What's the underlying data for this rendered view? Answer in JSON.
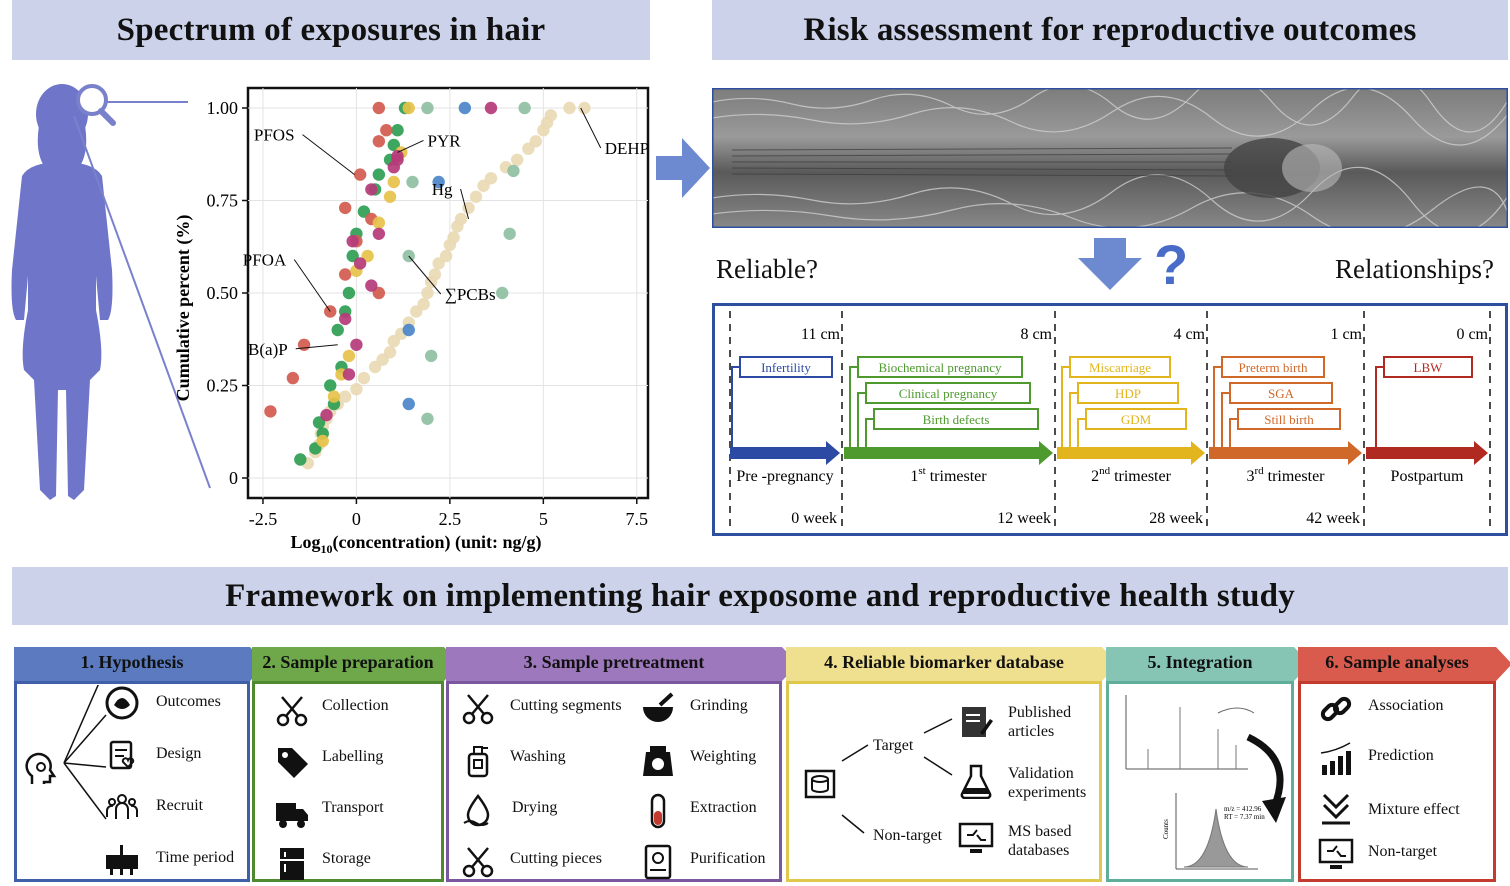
{
  "headers": {
    "left": "Spectrum of exposures in hair",
    "right": "Risk assessment for reproductive outcomes",
    "bottom": "Framework on implementing hair exposome and reproductive health study"
  },
  "chart_data": {
    "type": "scatter",
    "xlabel_main": "Log",
    "xlabel_sub": "10",
    "xlabel_rest": "(concentration) (unit: ng/g)",
    "ylabel": "Cumulative percent (%)",
    "xlim": [
      -2.9,
      7.8
    ],
    "ylim": [
      0,
      1.0
    ],
    "x_ticks": [
      {
        "v": -2.5,
        "label": "-2.5"
      },
      {
        "v": 0,
        "label": "0"
      },
      {
        "v": 2.5,
        "label": "2.5"
      },
      {
        "v": 5,
        "label": "5"
      },
      {
        "v": 7.5,
        "label": "7.5"
      }
    ],
    "y_ticks": [
      {
        "v": 0,
        "label": "0"
      },
      {
        "v": 0.25,
        "label": "0.25"
      },
      {
        "v": 0.5,
        "label": "0.50"
      },
      {
        "v": 0.75,
        "label": "0.75"
      },
      {
        "v": 1.0,
        "label": "1.00"
      }
    ],
    "grid": true,
    "series": [
      {
        "name": "DEHP",
        "color": "#e9d9b4",
        "points": [
          [
            -1.3,
            0.04
          ],
          [
            -1.1,
            0.07
          ],
          [
            -1.0,
            0.09
          ],
          [
            -0.95,
            0.12
          ],
          [
            -0.9,
            0.14
          ],
          [
            -0.8,
            0.16
          ],
          [
            -0.7,
            0.18
          ],
          [
            -0.5,
            0.2
          ],
          [
            -0.3,
            0.22
          ],
          [
            0.0,
            0.24
          ],
          [
            0.2,
            0.27
          ],
          [
            0.5,
            0.3
          ],
          [
            0.7,
            0.32
          ],
          [
            0.9,
            0.34
          ],
          [
            1.0,
            0.37
          ],
          [
            1.2,
            0.39
          ],
          [
            1.4,
            0.42
          ],
          [
            1.6,
            0.45
          ],
          [
            1.8,
            0.47
          ],
          [
            1.9,
            0.5
          ],
          [
            2.0,
            0.53
          ],
          [
            2.1,
            0.55
          ],
          [
            2.2,
            0.58
          ],
          [
            2.4,
            0.6
          ],
          [
            2.5,
            0.63
          ],
          [
            2.6,
            0.65
          ],
          [
            2.7,
            0.68
          ],
          [
            2.8,
            0.7
          ],
          [
            3.0,
            0.73
          ],
          [
            3.2,
            0.76
          ],
          [
            3.4,
            0.79
          ],
          [
            3.6,
            0.81
          ],
          [
            4.0,
            0.84
          ],
          [
            4.3,
            0.86
          ],
          [
            4.6,
            0.89
          ],
          [
            4.8,
            0.91
          ],
          [
            5.0,
            0.94
          ],
          [
            5.1,
            0.96
          ],
          [
            5.2,
            0.98
          ],
          [
            5.7,
            1.0
          ],
          [
            6.1,
            1.0
          ]
        ]
      },
      {
        "name": "Hg",
        "color": "#2e9e52",
        "points": [
          [
            -1.5,
            0.05
          ],
          [
            -1.1,
            0.08
          ],
          [
            -0.9,
            0.12
          ],
          [
            -1.0,
            0.15
          ],
          [
            -0.6,
            0.2
          ],
          [
            -0.7,
            0.25
          ],
          [
            -0.4,
            0.3
          ],
          [
            -0.5,
            0.4
          ],
          [
            -0.3,
            0.45
          ],
          [
            -0.2,
            0.5
          ],
          [
            -0.1,
            0.6
          ],
          [
            0.0,
            0.66
          ],
          [
            0.2,
            0.72
          ],
          [
            0.5,
            0.78
          ],
          [
            0.6,
            0.82
          ],
          [
            0.9,
            0.86
          ],
          [
            1.0,
            0.9
          ],
          [
            1.1,
            0.94
          ],
          [
            1.3,
            1.0
          ]
        ]
      },
      {
        "name": "PFOS",
        "color": "#d25a4e",
        "points": [
          [
            -2.3,
            0.18
          ],
          [
            -1.7,
            0.27
          ],
          [
            -1.4,
            0.36
          ],
          [
            -0.7,
            0.45
          ],
          [
            -0.3,
            0.55
          ],
          [
            0.0,
            0.64
          ],
          [
            0.1,
            0.82
          ],
          [
            0.4,
            0.7
          ],
          [
            0.6,
            0.5
          ],
          [
            0.8,
            0.94
          ],
          [
            0.6,
            0.91
          ],
          [
            -0.3,
            0.73
          ],
          [
            0.6,
            1.0
          ]
        ]
      },
      {
        "name": "PFOA",
        "color": "#e6c24a",
        "points": [
          [
            -0.9,
            0.1
          ],
          [
            -0.6,
            0.22
          ],
          [
            -0.4,
            0.28
          ],
          [
            -0.2,
            0.33
          ],
          [
            0.0,
            0.56
          ],
          [
            0.3,
            0.6
          ],
          [
            0.6,
            0.69
          ],
          [
            0.9,
            0.76
          ],
          [
            1.0,
            0.8
          ],
          [
            1.2,
            0.88
          ],
          [
            1.4,
            1.0
          ]
        ]
      },
      {
        "name": "PYR",
        "color": "#b53b79",
        "points": [
          [
            -0.8,
            0.17
          ],
          [
            -0.2,
            0.28
          ],
          [
            0.0,
            0.36
          ],
          [
            -0.3,
            0.43
          ],
          [
            0.4,
            0.52
          ],
          [
            0.1,
            0.58
          ],
          [
            -0.1,
            0.64
          ],
          [
            0.6,
            0.66
          ],
          [
            0.4,
            0.78
          ],
          [
            1.1,
            0.86
          ],
          [
            1.0,
            0.84
          ],
          [
            1.1,
            0.87
          ],
          [
            3.6,
            1.0
          ]
        ]
      },
      {
        "name": "∑PCBs",
        "color": "#8fc0a3",
        "points": [
          [
            1.4,
            0.6
          ],
          [
            2.0,
            0.33
          ],
          [
            1.9,
            0.16
          ],
          [
            3.9,
            0.5
          ],
          [
            4.1,
            0.66
          ],
          [
            4.2,
            0.83
          ],
          [
            1.5,
            0.8
          ],
          [
            1.9,
            1.0
          ],
          [
            4.5,
            1.0
          ]
        ]
      },
      {
        "name": "B(a)P",
        "color": "#4a86c8",
        "points": [
          [
            1.4,
            0.2
          ],
          [
            1.4,
            0.4
          ],
          [
            2.2,
            0.8
          ],
          [
            2.9,
            1.0
          ]
        ]
      }
    ],
    "annotations": [
      {
        "text": "PFOS",
        "x": -0.05,
        "y": 0.82
      },
      {
        "text": "PYR",
        "x": 1.1,
        "y": 0.88
      },
      {
        "text": "DEHP",
        "x": 6.0,
        "y": 1.0
      },
      {
        "text": "Hg",
        "x": 3.0,
        "y": 0.7
      },
      {
        "text": "PFOA",
        "x": -0.7,
        "y": 0.45
      },
      {
        "text": "∑PCBs",
        "x": 1.4,
        "y": 0.6
      },
      {
        "text": "B(a)P",
        "x": -0.5,
        "y": 0.36
      }
    ]
  },
  "middle": {
    "reliable": "Reliable?",
    "question": "?",
    "relationships": "Relationships?"
  },
  "timeline": {
    "lengths": [
      "11 cm",
      "8 cm",
      "4 cm",
      "1 cm",
      "0 cm"
    ],
    "weeks": [
      "0 week",
      "12 week",
      "28 week",
      "42 week"
    ],
    "stages": [
      {
        "label": "Pre -pregnancy",
        "color": "#2c4aa3"
      },
      {
        "label_pre": "1",
        "label_sup": "st",
        "label_post": " trimester",
        "color": "#4e9a2e"
      },
      {
        "label_pre": "2",
        "label_sup": "nd",
        "label_post": " trimester",
        "color": "#e2b51e"
      },
      {
        "label_pre": "3",
        "label_sup": "rd",
        "label_post": "  trimester",
        "color": "#d0682a"
      },
      {
        "label": "Postpartum",
        "color": "#b12a22"
      }
    ],
    "outcomes": {
      "pre": [
        "Infertility"
      ],
      "first": [
        "Biochemical pregnancy",
        "Clinical pregnancy",
        "Birth defects"
      ],
      "second": [
        "Miscarriage",
        "HDP",
        "GDM"
      ],
      "third": [
        "Preterm birth",
        "SGA",
        "Still birth"
      ],
      "post": [
        "LBW"
      ]
    }
  },
  "framework": {
    "steps": [
      {
        "title": "1.  Hypothesis",
        "color": "#5b7abf",
        "border": "#3f5fa8",
        "items": [
          "Outcomes",
          "Design",
          "Recruit",
          "Time period"
        ]
      },
      {
        "title": "2. Sample preparation",
        "color": "#6ea84a",
        "border": "#4f8a31",
        "items": [
          "Collection",
          "Labelling",
          "Transport",
          "Storage"
        ]
      },
      {
        "title": "3. Sample pretreatment",
        "color": "#9d78bd",
        "border": "#7b57a0",
        "items": [
          "Cutting segments",
          "Washing",
          "Drying",
          "Cutting pieces",
          "Grinding",
          "Weighting",
          "Extraction",
          "Purification"
        ]
      },
      {
        "title": "4. Reliable biomarker database",
        "color": "#efe08f",
        "border": "#e0c84c",
        "items": [
          "Target",
          "Non-target",
          "Published articles",
          "Validation experiments",
          "MS based databases"
        ]
      },
      {
        "title": "5. Integration",
        "color": "#86c4b4",
        "border": "#5fae9b",
        "items": []
      },
      {
        "title": "6. Sample analyses",
        "color": "#d85b4d",
        "border": "#c33a2f",
        "items": [
          "Association",
          "Prediction",
          "Mixture effect",
          "Non-target"
        ]
      }
    ],
    "integration_annotation": [
      "m/z = 412.96",
      "RT = 7.37 min"
    ],
    "integration_axis": "Counts"
  }
}
